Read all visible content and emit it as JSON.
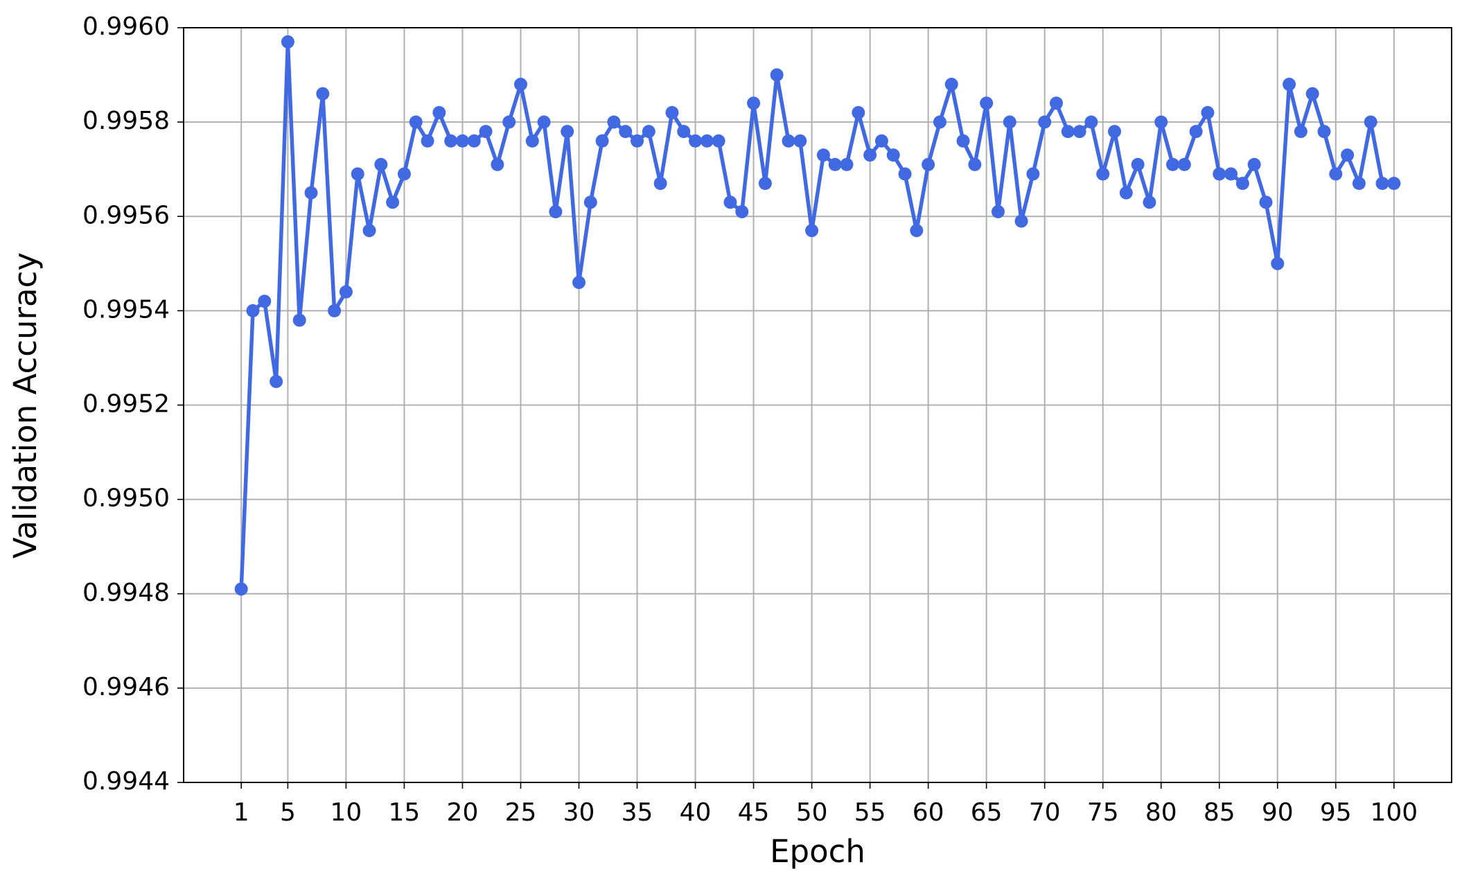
{
  "chart_data": {
    "type": "line",
    "x_label": "Epoch",
    "y_label": "Validation Accuracy",
    "series": [
      {
        "name": "Validation Accuracy",
        "color": "#4169e1",
        "x": [
          1,
          2,
          3,
          4,
          5,
          6,
          7,
          8,
          9,
          10,
          11,
          12,
          13,
          14,
          15,
          16,
          17,
          18,
          19,
          20,
          21,
          22,
          23,
          24,
          25,
          26,
          27,
          28,
          29,
          30,
          31,
          32,
          33,
          34,
          35,
          36,
          37,
          38,
          39,
          40,
          41,
          42,
          43,
          44,
          45,
          46,
          47,
          48,
          49,
          50,
          51,
          52,
          53,
          54,
          55,
          56,
          57,
          58,
          59,
          60,
          61,
          62,
          63,
          64,
          65,
          66,
          67,
          68,
          69,
          70,
          71,
          72,
          73,
          74,
          75,
          76,
          77,
          78,
          79,
          80,
          81,
          82,
          83,
          84,
          85,
          86,
          87,
          88,
          89,
          90,
          91,
          92,
          93,
          94,
          95,
          96,
          97,
          98,
          99,
          100
        ],
        "values": [
          0.99481,
          0.9954,
          0.99542,
          0.99525,
          0.99597,
          0.99538,
          0.99565,
          0.99586,
          0.9954,
          0.99544,
          0.99569,
          0.99557,
          0.99571,
          0.99563,
          0.99569,
          0.9958,
          0.99576,
          0.99582,
          0.99576,
          0.99576,
          0.99576,
          0.99578,
          0.99571,
          0.9958,
          0.99588,
          0.99576,
          0.9958,
          0.99561,
          0.99578,
          0.99546,
          0.99563,
          0.99576,
          0.9958,
          0.99578,
          0.99576,
          0.99578,
          0.99567,
          0.99582,
          0.99578,
          0.99576,
          0.99576,
          0.99576,
          0.99563,
          0.99561,
          0.99584,
          0.99567,
          0.9959,
          0.99576,
          0.99576,
          0.99557,
          0.99573,
          0.99571,
          0.99571,
          0.99582,
          0.99573,
          0.99576,
          0.99573,
          0.99569,
          0.99557,
          0.99571,
          0.9958,
          0.99588,
          0.99576,
          0.99571,
          0.99584,
          0.99561,
          0.9958,
          0.99559,
          0.99569,
          0.9958,
          0.99584,
          0.99578,
          0.99578,
          0.9958,
          0.99569,
          0.99578,
          0.99565,
          0.99571,
          0.99563,
          0.9958,
          0.99571,
          0.99571,
          0.99578,
          0.99582,
          0.99569,
          0.99569,
          0.99567,
          0.99571,
          0.99563,
          0.9955,
          0.99588,
          0.99578,
          0.99586,
          0.99578,
          0.99569,
          0.99573,
          0.99567,
          0.9958,
          0.99567,
          0.99567
        ]
      }
    ],
    "xlim": [
      -3.95,
      104.95
    ],
    "xticks": [
      1,
      5,
      10,
      15,
      20,
      25,
      30,
      35,
      40,
      45,
      50,
      55,
      60,
      65,
      70,
      75,
      80,
      85,
      90,
      95,
      100
    ],
    "ylim": [
      0.9944,
      0.996
    ],
    "yticks": [
      0.9944,
      0.9946,
      0.9948,
      {
        "value": 0.995,
        "label": "0.9950"
      },
      0.9952,
      0.9954,
      0.9956,
      0.9958,
      {
        "value": 0.996,
        "label": "0.9960"
      }
    ],
    "grid": true,
    "markers": true
  }
}
